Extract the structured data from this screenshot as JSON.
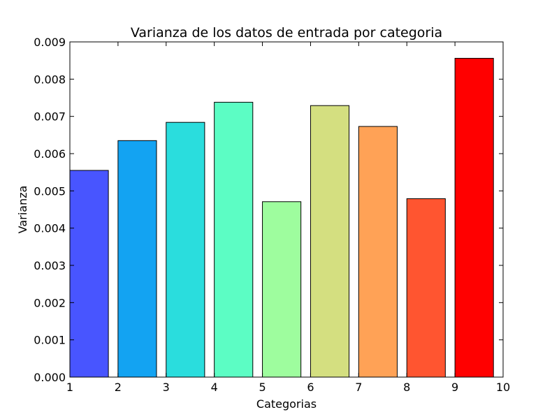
{
  "chart_data": {
    "type": "bar",
    "title": "Varianza de los datos de entrada por categoria",
    "xlabel": "Categorias",
    "ylabel": "Varianza",
    "xlim": [
      1,
      10
    ],
    "ylim": [
      0,
      0.009
    ],
    "xticks": [
      "1",
      "2",
      "3",
      "4",
      "5",
      "6",
      "7",
      "8",
      "9",
      "10"
    ],
    "yticks": [
      "0.000",
      "0.001",
      "0.002",
      "0.003",
      "0.004",
      "0.005",
      "0.006",
      "0.007",
      "0.008",
      "0.009"
    ],
    "categories": [
      1,
      2,
      3,
      4,
      5,
      6,
      7,
      8,
      9
    ],
    "values": [
      0.00555,
      0.00635,
      0.00684,
      0.00738,
      0.00471,
      0.00729,
      0.00673,
      0.00479,
      0.00856
    ],
    "bar_width": 0.8,
    "colors": [
      "#4855ff",
      "#13a3f2",
      "#2adddd",
      "#5cfdc4",
      "#9efd9e",
      "#d4df80",
      "#ffa256",
      "#ff5530",
      "#ff0000"
    ],
    "grid": false,
    "legend": "none"
  }
}
